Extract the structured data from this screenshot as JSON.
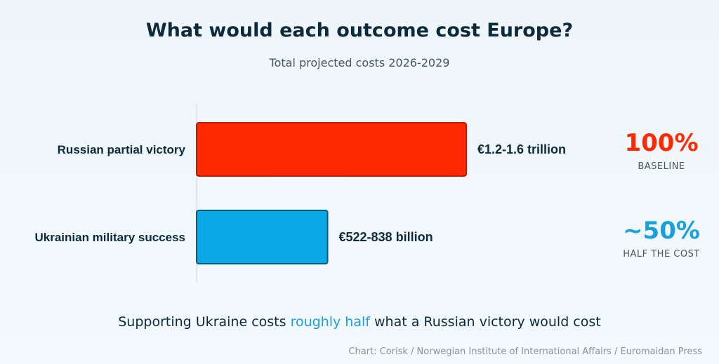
{
  "chart_data": {
    "type": "bar",
    "orientation": "horizontal",
    "title": "What would each outcome cost Europe?",
    "subtitle": "Total projected costs 2026-2029",
    "categories": [
      "Russian partial victory",
      "Ukrainian military success"
    ],
    "value_ranges": [
      [
        1200,
        1600
      ],
      [
        522,
        838
      ]
    ],
    "value_units": "€ billion",
    "data_labels": [
      "€1.2-1.6 trillion",
      "€522-838 billion"
    ],
    "relative": [
      {
        "value": "100%",
        "label": "BASELINE"
      },
      {
        "value": "~50%",
        "label": "HALF THE COST"
      }
    ],
    "colors": [
      "#ff2a00",
      "#0aa8e6"
    ],
    "relative_colors": [
      "#ff2a00",
      "#1aa0dc"
    ],
    "grid": false,
    "legend": "none"
  },
  "footer": {
    "before": "Supporting Ukraine costs ",
    "highlight": "roughly half",
    "after": " what a Russian victory would cost"
  },
  "source": "Chart: Corisk / Norwegian Institute of International Affairs / Euromaidan Press"
}
